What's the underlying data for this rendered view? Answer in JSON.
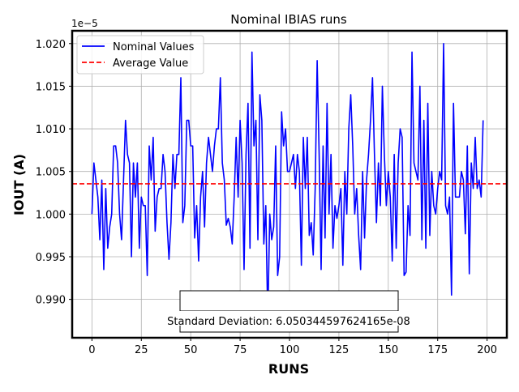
{
  "chart_data": {
    "type": "line",
    "title": "Nominal IBIAS runs",
    "xlabel": "RUNS",
    "ylabel": "IOUT (A)",
    "offset_label": "1e−5",
    "xlim": [
      -10,
      210
    ],
    "ylim": [
      0.9855,
      1.0215
    ],
    "x_ticks": [
      0,
      25,
      50,
      75,
      100,
      125,
      150,
      175,
      200
    ],
    "y_ticks": [
      0.99,
      0.995,
      1.0,
      1.005,
      1.01,
      1.015,
      1.02
    ],
    "x_tick_labels": [
      "0",
      "25",
      "50",
      "75",
      "100",
      "125",
      "150",
      "175",
      "200"
    ],
    "y_tick_labels": [
      "0.990",
      "0.995",
      "1.000",
      "1.005",
      "1.010",
      "1.015",
      "1.020"
    ],
    "grid": true,
    "legend_position": "top-left",
    "series": [
      {
        "name": "Nominal Values",
        "style": "solid",
        "color": "#0000ff",
        "x_start": 0,
        "x_step": 1,
        "values": [
          1.0,
          1.006,
          1.004,
          1.002,
          0.997,
          1.004,
          0.9935,
          1.003,
          0.996,
          0.9985,
          1.0,
          1.008,
          1.008,
          1.006,
          1.0,
          0.997,
          1.004,
          1.011,
          1.007,
          1.006,
          0.995,
          1.006,
          1.002,
          1.006,
          0.996,
          1.002,
          1.001,
          1.001,
          0.9928,
          1.008,
          1.004,
          1.009,
          0.998,
          1.002,
          1.003,
          1.003,
          1.007,
          1.005,
          0.999,
          0.9947,
          0.999,
          1.007,
          1.003,
          1.007,
          1.007,
          1.016,
          0.999,
          1.001,
          1.011,
          1.011,
          1.008,
          1.008,
          0.9972,
          1.001,
          0.9945,
          1.002,
          1.005,
          0.9985,
          1.006,
          1.009,
          1.007,
          1.005,
          1.008,
          1.01,
          1.01,
          1.016,
          1.006,
          1.004,
          0.9987,
          0.9995,
          0.9985,
          0.9965,
          1.002,
          1.009,
          1.002,
          1.011,
          1.006,
          0.9935,
          1.007,
          1.013,
          0.996,
          1.019,
          1.008,
          1.011,
          0.997,
          1.014,
          1.011,
          0.9965,
          1.001,
          0.9875,
          1.0,
          0.997,
          0.9985,
          1.008,
          0.9928,
          0.995,
          1.012,
          1.008,
          1.01,
          1.005,
          1.005,
          1.006,
          1.007,
          1.003,
          1.007,
          1.005,
          0.994,
          1.009,
          1.003,
          1.009,
          0.9975,
          0.999,
          0.9952,
          1.003,
          1.018,
          1.007,
          0.9935,
          1.008,
          0.9972,
          1.013,
          1.0,
          1.007,
          0.996,
          1.001,
          0.9995,
          1.001,
          1.003,
          0.994,
          1.005,
          1.0,
          1.01,
          1.014,
          1.008,
          1.0,
          1.003,
          0.9975,
          0.9935,
          1.005,
          0.9972,
          1.004,
          1.007,
          1.011,
          1.016,
          1.007,
          0.999,
          1.006,
          1.001,
          1.015,
          1.007,
          1.001,
          1.005,
          1.002,
          0.9945,
          1.007,
          0.996,
          1.006,
          1.01,
          1.009,
          0.9928,
          0.9932,
          1.001,
          0.9975,
          1.019,
          1.006,
          1.005,
          1.004,
          1.015,
          0.997,
          1.011,
          0.996,
          1.013,
          0.9975,
          1.005,
          1.001,
          1.0,
          1.003,
          1.005,
          1.004,
          1.02,
          1.001,
          1.0,
          1.002,
          0.9905,
          1.013,
          1.002,
          1.002,
          1.002,
          1.005,
          1.004,
          0.9977,
          1.008,
          0.993,
          1.006,
          1.003,
          1.009,
          1.003,
          1.004,
          1.002,
          1.011
        ]
      },
      {
        "name": "Average Value",
        "style": "dashed",
        "color": "#ff0000",
        "value": 1.00355
      }
    ],
    "annotation": "Standard Deviation: 6.050344597624165e-08"
  }
}
